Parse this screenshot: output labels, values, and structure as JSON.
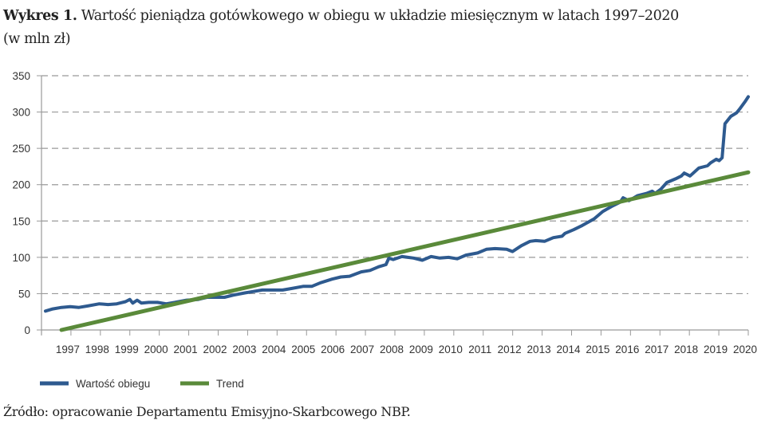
{
  "header": {
    "label": "Wykres 1.",
    "title": "Wartość pieniądza gotówkowego w obiegu w układzie miesięcznym w latach 1997–2020",
    "subtitle": "(w mln zł)"
  },
  "source": "Źródło: opracowanie Departamentu Emisyjno-Skarbcowego NBP.",
  "chart_data": {
    "type": "line",
    "title": "Wartość pieniądza gotówkowego w obiegu w układzie miesięcznym w latach 1997–2020",
    "ylabel": "(w mln zł)",
    "xlabel": "",
    "ylim": [
      0,
      350
    ],
    "yticks": [
      0,
      50,
      100,
      150,
      200,
      250,
      300,
      350
    ],
    "xticks": [
      "1997",
      "1998",
      "1999",
      "2000",
      "2001",
      "2002",
      "2003",
      "2004",
      "2005",
      "2006",
      "2007",
      "2008",
      "2009",
      "2010",
      "2011",
      "2012",
      "2013",
      "2014",
      "2015",
      "2016",
      "2017",
      "2018",
      "2019",
      "2020"
    ],
    "grid": "horizontal dashed",
    "legend_position": "bottom-left",
    "series": [
      {
        "name": "Wartość obiegu",
        "color": "#2e5a8f",
        "points": [
          [
            1996.15,
            26
          ],
          [
            1996.4,
            29
          ],
          [
            1996.7,
            31
          ],
          [
            1997.0,
            32
          ],
          [
            1997.3,
            31
          ],
          [
            1997.6,
            33
          ],
          [
            1998.0,
            36
          ],
          [
            1998.3,
            35
          ],
          [
            1998.6,
            36
          ],
          [
            1998.9,
            39
          ],
          [
            1999.05,
            42
          ],
          [
            1999.15,
            37
          ],
          [
            1999.3,
            41
          ],
          [
            1999.45,
            37
          ],
          [
            1999.7,
            38
          ],
          [
            2000.0,
            38
          ],
          [
            2000.3,
            36
          ],
          [
            2000.6,
            38
          ],
          [
            2001.0,
            41
          ],
          [
            2001.4,
            42
          ],
          [
            2001.7,
            45
          ],
          [
            2002.0,
            45
          ],
          [
            2002.3,
            45
          ],
          [
            2002.6,
            48
          ],
          [
            2003.0,
            51
          ],
          [
            2003.3,
            53
          ],
          [
            2003.6,
            55
          ],
          [
            2004.0,
            55
          ],
          [
            2004.3,
            55
          ],
          [
            2004.6,
            57
          ],
          [
            2005.0,
            60
          ],
          [
            2005.3,
            60
          ],
          [
            2005.6,
            65
          ],
          [
            2006.0,
            70
          ],
          [
            2006.3,
            73
          ],
          [
            2006.6,
            74
          ],
          [
            2007.0,
            80
          ],
          [
            2007.3,
            82
          ],
          [
            2007.6,
            87
          ],
          [
            2007.85,
            90
          ],
          [
            2007.95,
            99
          ],
          [
            2008.1,
            97
          ],
          [
            2008.4,
            101
          ],
          [
            2008.8,
            99
          ],
          [
            2009.1,
            96
          ],
          [
            2009.4,
            101
          ],
          [
            2009.7,
            99
          ],
          [
            2010.0,
            100
          ],
          [
            2010.3,
            98
          ],
          [
            2010.6,
            103
          ],
          [
            2011.0,
            106
          ],
          [
            2011.3,
            111
          ],
          [
            2011.6,
            112
          ],
          [
            2012.0,
            111
          ],
          [
            2012.2,
            108
          ],
          [
            2012.5,
            116
          ],
          [
            2012.8,
            122
          ],
          [
            2013.0,
            123
          ],
          [
            2013.3,
            122
          ],
          [
            2013.6,
            127
          ],
          [
            2013.9,
            129
          ],
          [
            2014.0,
            133
          ],
          [
            2014.3,
            138
          ],
          [
            2014.6,
            144
          ],
          [
            2015.0,
            153
          ],
          [
            2015.3,
            163
          ],
          [
            2015.6,
            170
          ],
          [
            2015.9,
            176
          ],
          [
            2016.0,
            182
          ],
          [
            2016.2,
            178
          ],
          [
            2016.5,
            185
          ],
          [
            2016.8,
            188
          ],
          [
            2017.0,
            191
          ],
          [
            2017.1,
            188
          ],
          [
            2017.3,
            194
          ],
          [
            2017.5,
            203
          ],
          [
            2017.8,
            208
          ],
          [
            2018.0,
            212
          ],
          [
            2018.1,
            216
          ],
          [
            2018.3,
            212
          ],
          [
            2018.6,
            223
          ],
          [
            2018.9,
            226
          ],
          [
            2019.0,
            230
          ],
          [
            2019.2,
            235
          ],
          [
            2019.3,
            233
          ],
          [
            2019.4,
            237
          ],
          [
            2019.5,
            284
          ],
          [
            2019.7,
            294
          ],
          [
            2019.9,
            299
          ],
          [
            2020.0,
            304
          ],
          [
            2020.2,
            315
          ],
          [
            2020.3,
            321
          ]
        ]
      },
      {
        "name": "Trend",
        "color": "#5a8a3a",
        "points": [
          [
            1996.7,
            0
          ],
          [
            2020.3,
            217
          ]
        ]
      }
    ]
  }
}
